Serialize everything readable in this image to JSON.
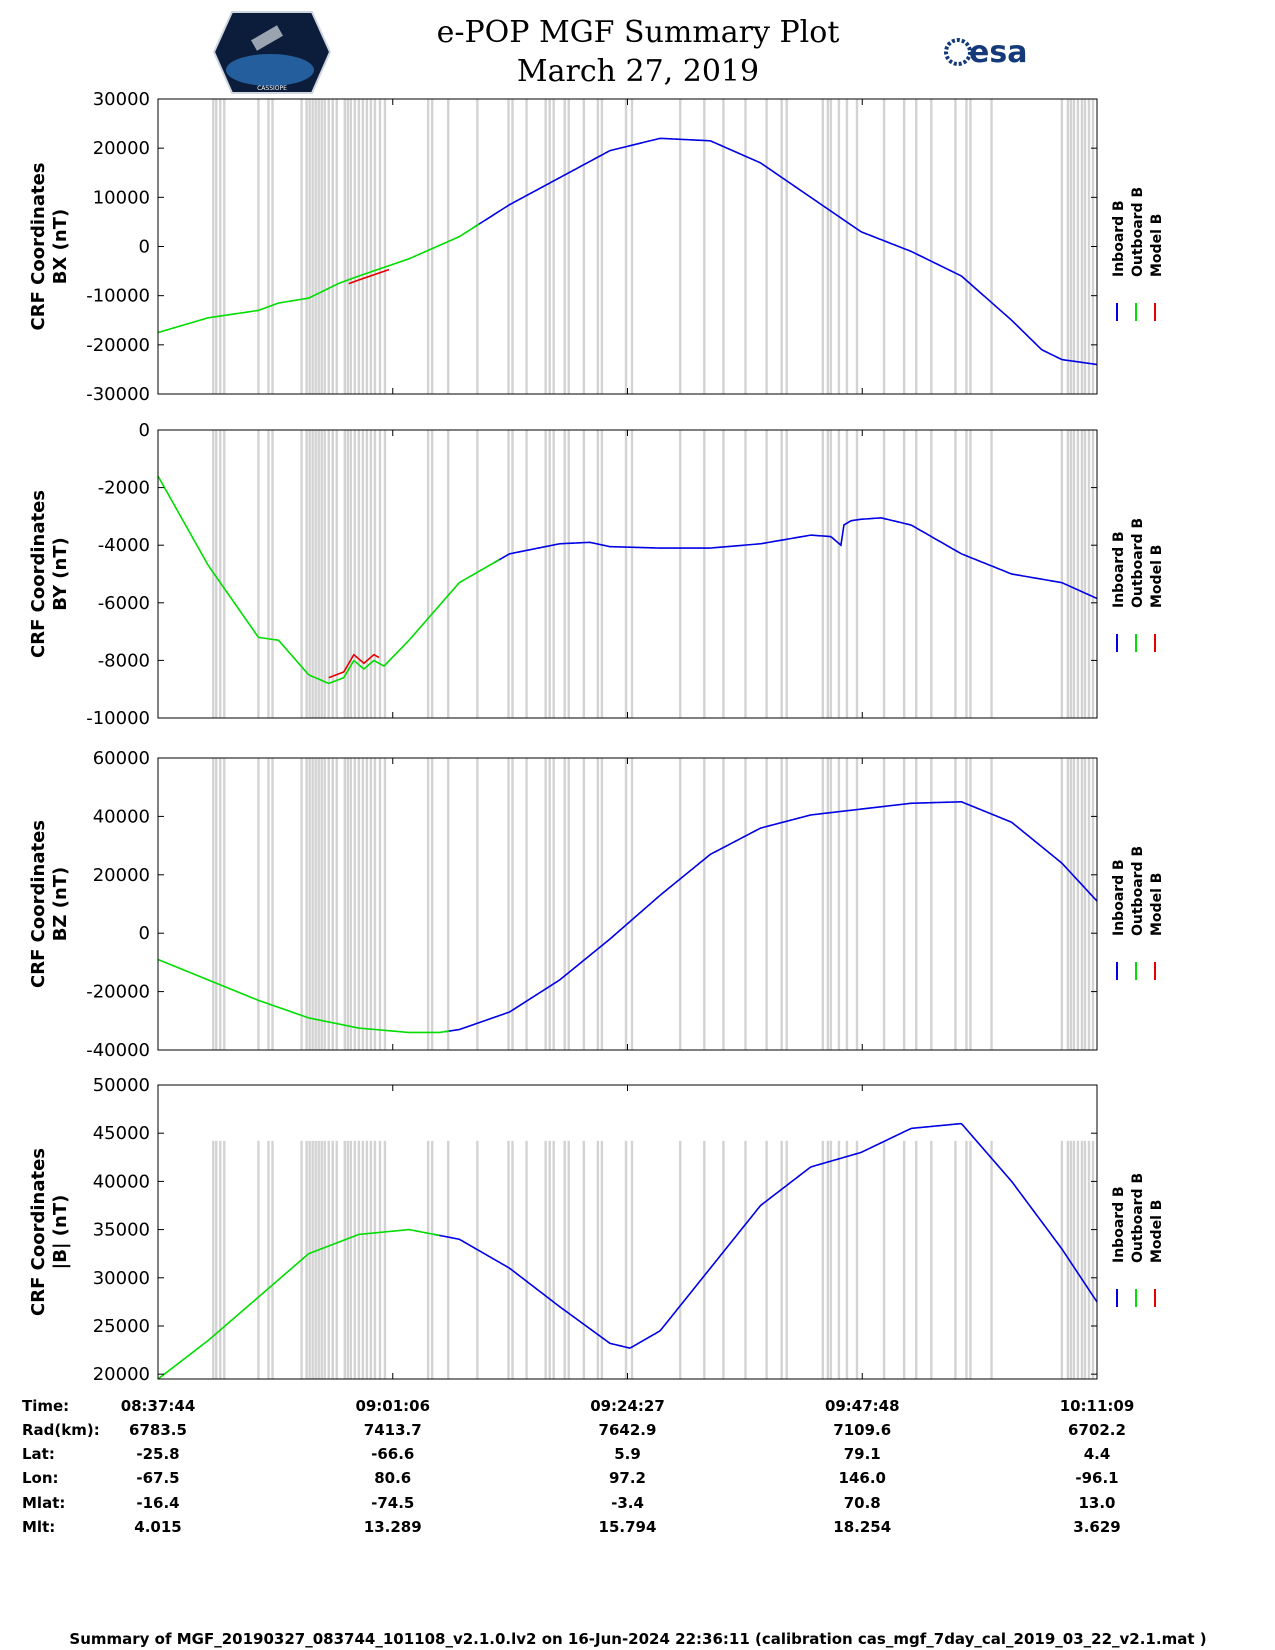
{
  "header": {
    "title": "e-POP MGF Summary Plot",
    "date": "March 27, 2019",
    "logo_left": "CASSIOPE",
    "logo_right": "esa"
  },
  "legend": [
    "Inboard B",
    "Outboard B",
    "Model B"
  ],
  "colors": {
    "inboard": "#0000e6",
    "outboard": "#00dd00",
    "model": "#e60000",
    "gap": "#d3d3d3",
    "axis": "#000000"
  },
  "x_ticks": [
    "08:37:44",
    "09:01:06",
    "09:24:27",
    "09:47:48",
    "10:11:09"
  ],
  "info_table": {
    "labels": [
      "Time:",
      "Rad(km):",
      "Lat:",
      "Lon:",
      "Mlat:",
      "Mlt:"
    ],
    "columns": [
      [
        "08:37:44",
        "6783.5",
        "-25.8",
        "-67.5",
        "-16.4",
        "4.015"
      ],
      [
        "09:01:06",
        "7413.7",
        "-66.6",
        "80.6",
        "-74.5",
        "13.289"
      ],
      [
        "09:24:27",
        "7642.9",
        "5.9",
        "97.2",
        "-3.4",
        "15.794"
      ],
      [
        "09:47:48",
        "7109.6",
        "79.1",
        "146.0",
        "70.8",
        "18.254"
      ],
      [
        "10:11:09",
        "6702.2",
        "4.4",
        "-96.1",
        "13.0",
        "3.629"
      ]
    ]
  },
  "footer": "Summary of MGF_20190327_083744_101108_v2.1.0.lv2 on 16-Jun-2024 22:36:11 (calibration cas_mgf_7day_cal_2019_03_22_v2.1.mat )",
  "chart_data": [
    {
      "type": "line",
      "ylabel": [
        "CRF Coordinates",
        "BX (nT)"
      ],
      "ylim": [
        -30000,
        30000
      ],
      "yticks": [
        30000,
        20000,
        10000,
        0,
        -10000,
        -20000,
        -30000
      ],
      "x_minutes": [
        0,
        5,
        10,
        12,
        15,
        18,
        20,
        25,
        30,
        35,
        40,
        45,
        50,
        55,
        60,
        65,
        70,
        75,
        80,
        85,
        88,
        90,
        93.5
      ],
      "values": [
        -17500,
        -14500,
        -13000,
        -11500,
        -10500,
        -7500,
        -6000,
        -2500,
        2000,
        8500,
        14000,
        19500,
        22000,
        21500,
        17000,
        10000,
        3000,
        -1000,
        -6000,
        -15000,
        -21000,
        -23000,
        -24000
      ],
      "outboard_until": 32,
      "model_deviation": {
        "from": 19,
        "to": 23,
        "offset": -800
      },
      "gap_height": 1.0
    },
    {
      "type": "line",
      "ylabel": [
        "CRF Coordinates",
        "BY (nT)"
      ],
      "ylim": [
        -10000,
        0
      ],
      "yticks": [
        0,
        -2000,
        -4000,
        -6000,
        -8000,
        -10000
      ],
      "x_minutes": [
        0,
        5,
        10,
        12,
        15,
        17,
        18.5,
        19.5,
        20.5,
        21.5,
        22.5,
        25,
        30,
        35,
        40,
        43,
        45,
        50,
        55,
        60,
        65,
        67,
        68,
        68.3,
        69,
        70,
        72,
        75,
        78,
        80,
        85,
        90,
        93.5
      ],
      "values": [
        -1600,
        -4700,
        -7200,
        -7300,
        -8500,
        -8800,
        -8600,
        -8000,
        -8300,
        -8000,
        -8200,
        -7300,
        -5300,
        -4300,
        -3950,
        -3900,
        -4050,
        -4100,
        -4100,
        -3950,
        -3650,
        -3700,
        -4000,
        -3300,
        -3150,
        -3100,
        -3050,
        -3300,
        -3900,
        -4300,
        -5000,
        -5300,
        -5850
      ],
      "outboard_until": 34,
      "model_deviation": {
        "from": 17,
        "to": 22,
        "offset": 200
      },
      "gap_height": 1.0
    },
    {
      "type": "line",
      "ylabel": [
        "CRF Coordinates",
        "BZ (nT)"
      ],
      "ylim": [
        -40000,
        60000
      ],
      "yticks": [
        60000,
        40000,
        20000,
        0,
        -20000,
        -40000
      ],
      "x_minutes": [
        0,
        5,
        10,
        15,
        20,
        25,
        28,
        30,
        35,
        40,
        45,
        50,
        55,
        60,
        65,
        70,
        75,
        80,
        85,
        90,
        93.5
      ],
      "values": [
        -9000,
        -16000,
        -23000,
        -29000,
        -32500,
        -34000,
        -34000,
        -33000,
        -27000,
        -16000,
        -2000,
        13000,
        27000,
        36000,
        40500,
        42500,
        44500,
        45000,
        38000,
        24000,
        11000
      ],
      "outboard_until": 29,
      "model_deviation": null,
      "gap_height": 1.0
    },
    {
      "type": "line",
      "ylabel": [
        "CRF Coordinates",
        "|B| (nT)"
      ],
      "ylim": [
        19500,
        50000
      ],
      "yticks": [
        50000,
        45000,
        40000,
        35000,
        30000,
        25000,
        20000
      ],
      "x_minutes": [
        0,
        5,
        10,
        15,
        20,
        25,
        30,
        35,
        40,
        45,
        47,
        50,
        55,
        60,
        65,
        70,
        75,
        80,
        85,
        90,
        93.5
      ],
      "values": [
        19500,
        23500,
        28000,
        32500,
        34500,
        35000,
        34000,
        31000,
        27000,
        23200,
        22700,
        24500,
        31000,
        37500,
        41500,
        43000,
        45500,
        46000,
        40000,
        33000,
        27500
      ],
      "outboard_until": 28,
      "model_deviation": null,
      "gap_height": 0.81
    }
  ],
  "data_gaps_minutes": [
    5.5,
    5.8,
    6.2,
    6.6,
    10.0,
    11.0,
    11.4,
    14.3,
    14.8,
    15.1,
    15.4,
    15.7,
    16.0,
    16.3,
    16.6,
    17.0,
    17.4,
    17.8,
    18.6,
    18.9,
    19.2,
    19.6,
    20.0,
    20.4,
    20.8,
    21.2,
    21.6,
    22.1,
    22.6,
    26.9,
    27.3,
    28.9,
    31.8,
    34.9,
    35.3,
    36.7,
    38.6,
    39.0,
    39.4,
    40.5,
    40.9,
    42.4,
    43.8,
    44.2,
    46.6,
    47.2,
    52.0,
    54.4,
    56.3,
    58.5,
    60.6,
    62.1,
    62.6,
    66.2,
    66.7,
    67.0,
    67.8,
    68.6,
    69.6,
    72.3,
    74.3,
    75.5,
    77.0,
    79.4,
    80.5,
    80.9,
    83.0,
    90.0,
    90.6,
    90.9,
    91.2,
    91.6,
    92.0,
    92.3,
    92.7,
    93.1
  ]
}
